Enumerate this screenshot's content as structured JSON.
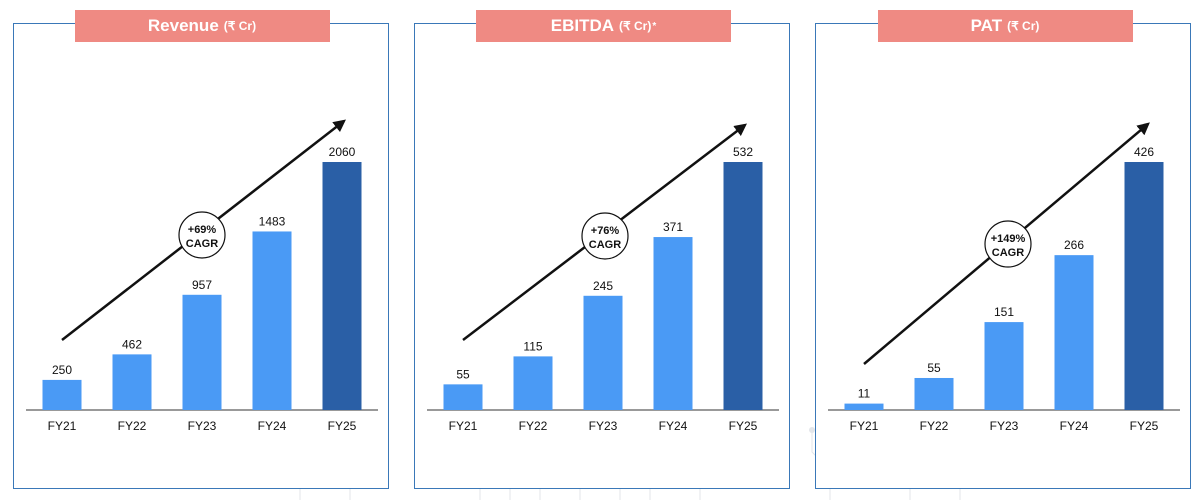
{
  "chart_data": [
    {
      "type": "bar",
      "title": "Revenue",
      "unit": "(₹ Cr)",
      "title_suffix": "",
      "categories": [
        "FY21",
        "FY22",
        "FY23",
        "FY24",
        "FY25"
      ],
      "values": [
        250,
        462,
        957,
        1483,
        2060
      ],
      "value_labels": [
        "250",
        "462",
        "957",
        "1483",
        "2060"
      ],
      "cagr_value": "+69%",
      "cagr_label": "CAGR",
      "ylim": [
        0,
        2060
      ]
    },
    {
      "type": "bar",
      "title": "EBITDA",
      "unit": "(₹ Cr)",
      "title_suffix": "*",
      "categories": [
        "FY21",
        "FY22",
        "FY23",
        "FY24",
        "FY25"
      ],
      "values": [
        55,
        115,
        245,
        371,
        532
      ],
      "value_labels": [
        "55",
        "115",
        "245",
        "371",
        "532"
      ],
      "cagr_value": "+76%",
      "cagr_label": "CAGR",
      "ylim": [
        0,
        532
      ]
    },
    {
      "type": "bar",
      "title": "PAT",
      "unit": "(₹ Cr)",
      "title_suffix": "",
      "categories": [
        "FY21",
        "FY22",
        "FY23",
        "FY24",
        "FY25"
      ],
      "values": [
        11,
        55,
        151,
        266,
        426
      ],
      "value_labels": [
        "11",
        "55",
        "151",
        "266",
        "426"
      ],
      "cagr_value": "+149%",
      "cagr_label": "CAGR",
      "ylim": [
        0,
        426
      ]
    }
  ],
  "colors": {
    "bar": "#4a9af5",
    "bar_highlight": "#2a5fa6",
    "banner": "#ef8a83",
    "panel_border": "#3a78b8",
    "text": "#111111"
  }
}
